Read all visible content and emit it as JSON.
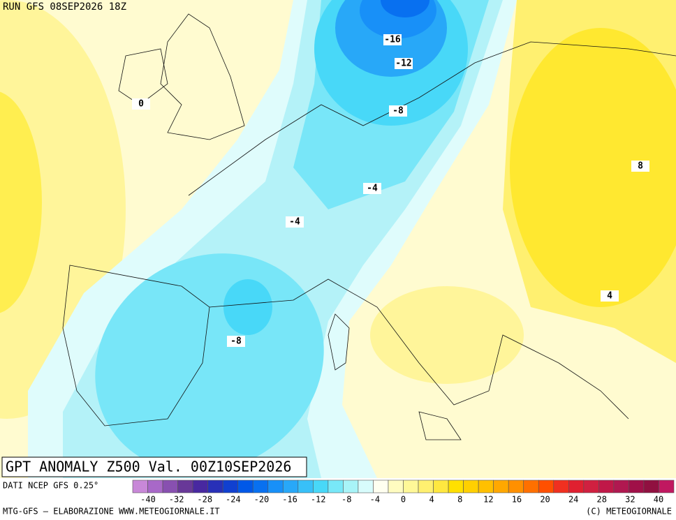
{
  "header": {
    "run": "RUN GFS 08SEP2026 18Z"
  },
  "map": {
    "contour_labels": [
      "-16",
      "-12",
      "-8",
      "0",
      "8",
      "-4",
      "-4",
      "4",
      "-8"
    ]
  },
  "title": "GPT ANOMALY Z500 Val. 00Z10SEP2026",
  "colorbar": {
    "source": "DATI NCEP GFS 0.25°",
    "colors": [
      "#c888d8",
      "#a868c8",
      "#8850b0",
      "#683898",
      "#4828a0",
      "#2830b8",
      "#1040d0",
      "#0058e8",
      "#0870f0",
      "#1890f8",
      "#28a8f8",
      "#38c0f8",
      "#48d8f8",
      "#78e8f8",
      "#a8f4f8",
      "#d8fcfc",
      "#fffff0",
      "#fffcc0",
      "#fff898",
      "#fff070",
      "#ffe840",
      "#ffe000",
      "#ffd000",
      "#ffc000",
      "#ffa800",
      "#ff9000",
      "#ff7000",
      "#ff5000",
      "#f03020",
      "#e02030",
      "#d02040",
      "#c01848",
      "#b01850",
      "#a01048",
      "#901040",
      "#c01860"
    ],
    "ticks": [
      -40,
      -32,
      -28,
      -24,
      -20,
      -16,
      -12,
      -8,
      -4,
      0,
      4,
      8,
      12,
      16,
      20,
      24,
      28,
      32,
      40
    ]
  },
  "footer": {
    "left": "MTG-GFS – ELABORAZIONE WWW.METEOGIORNALE.IT",
    "right": "(C) METEOGIORNALE"
  }
}
